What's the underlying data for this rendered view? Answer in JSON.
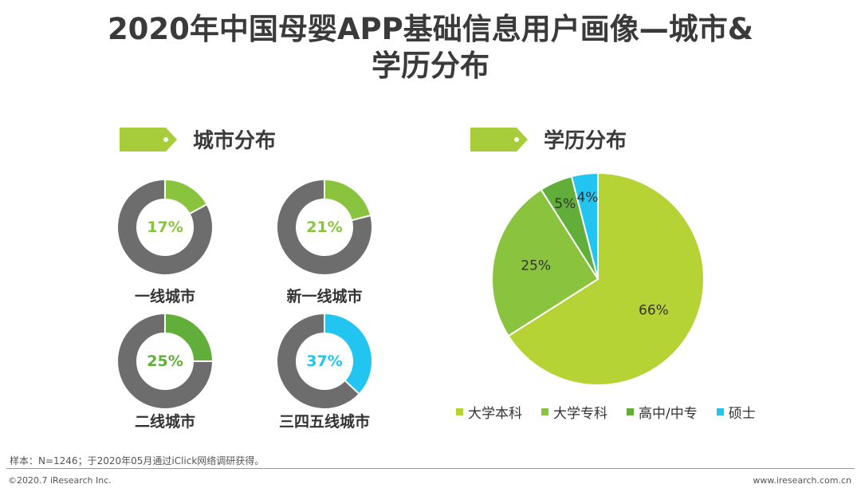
{
  "title": {
    "line1": "2020年中国母婴APP基础信息用户画像—城市&",
    "line2": "学历分布"
  },
  "sections": {
    "city": "城市分布",
    "education": "学历分布"
  },
  "colors": {
    "header_tag": "#a8cd3a",
    "donut_rest": "#6d6d6d",
    "green_light": "#8ac43f",
    "green_mid": "#62ae3a",
    "cyan": "#22c5ef"
  },
  "chart_data": [
    {
      "type": "donut",
      "title": "城市分布",
      "categories": [
        "一线城市",
        "新一线城市",
        "二线城市",
        "三四五线城市"
      ],
      "values": [
        17,
        21,
        25,
        37
      ],
      "labels": [
        "17%",
        "21%",
        "25%",
        "37%"
      ],
      "colors": [
        "#8ac43f",
        "#8ac43f",
        "#62ae3a",
        "#22c5ef"
      ]
    },
    {
      "type": "pie",
      "title": "学历分布",
      "categories": [
        "大学本科",
        "大学专科",
        "高中/中专",
        "硕士"
      ],
      "values": [
        66,
        25,
        5,
        4
      ],
      "labels": [
        "66%",
        "25%",
        "5%",
        "4%"
      ],
      "colors": [
        "#b5d334",
        "#8ac43f",
        "#62ae3a",
        "#22c5ef"
      ],
      "legend": "bottom"
    }
  ],
  "footer": {
    "note": "样本：N=1246；于2020年05月通过iClick网络调研获得。",
    "copyright": "©2020.7 iResearch Inc.",
    "website": "www.iresearch.com.cn"
  }
}
